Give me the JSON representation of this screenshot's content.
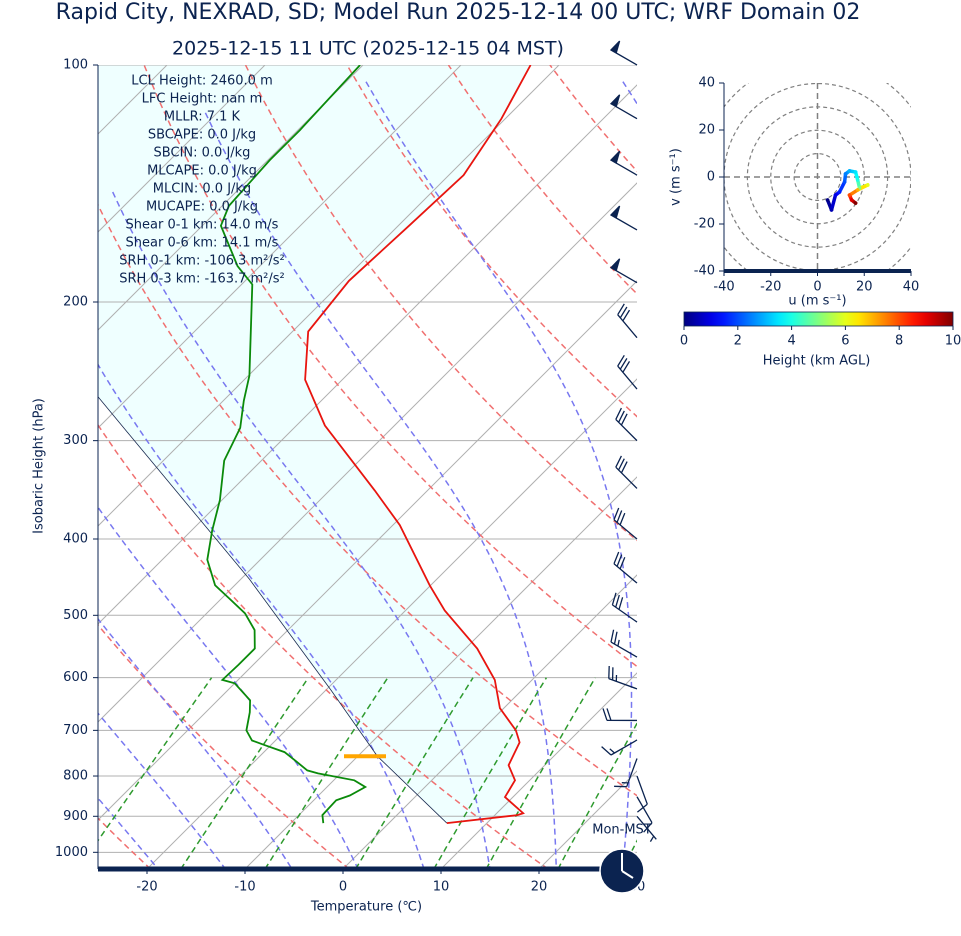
{
  "chart_data": [
    {
      "type": "skewt",
      "suptitle": "Rapid City, NEXRAD, SD; Model Run 2025-12-14 00 UTC; WRF Domain 02",
      "title": "2025-12-15 11 UTC  (2025-12-15 04 MST)",
      "x_label": "Temperature (℃)",
      "y_label": "Isobaric Height (hPa)",
      "xlim": [
        -25,
        30
      ],
      "ylim": [
        1050,
        100
      ],
      "xticks": [
        -20,
        -10,
        0,
        10,
        20,
        30
      ],
      "yticks": [
        100,
        200,
        300,
        400,
        500,
        600,
        700,
        800,
        900,
        1000
      ],
      "log_y": true,
      "grid": true,
      "temperature": {
        "color": "#e8150f",
        "pressure": [
          918,
          897,
          892,
          851,
          810,
          775,
          725,
          700,
          656,
          604,
          551,
          493,
          458,
          384,
          347,
          287,
          251,
          218,
          188,
          160,
          138,
          117,
          100
        ],
        "values": [
          5.9,
          12.3,
          12.7,
          9.2,
          8.5,
          6.3,
          5.1,
          3.5,
          -0.4,
          -3.8,
          -8.8,
          -16.0,
          -20.1,
          -29.3,
          -35.4,
          -47.1,
          -53.8,
          -58.4,
          -59.4,
          -58.9,
          -58.5,
          -60.4,
          -62.9
        ]
      },
      "dewpoint": {
        "color": "#0a8a0a",
        "pressure": [
          918,
          897,
          859,
          847,
          826,
          810,
          794,
          787,
          764,
          746,
          731,
          721,
          700,
          664,
          641,
          610,
          604,
          578,
          551,
          522,
          497,
          476,
          458,
          425,
          390,
          357,
          318,
          289,
          267,
          248,
          190,
          180,
          160,
          151,
          132,
          121,
          100
        ],
        "values": [
          -6.7,
          -7.6,
          -7.7,
          -6.8,
          -6.1,
          -7.9,
          -12.3,
          -13.7,
          -16.0,
          -17.9,
          -20.6,
          -22.4,
          -24.0,
          -25.5,
          -26.7,
          -30.0,
          -31.6,
          -31.5,
          -31.5,
          -33.4,
          -36.1,
          -39.2,
          -42.0,
          -45.4,
          -47.9,
          -50.2,
          -53.8,
          -55.5,
          -57.9,
          -59.9,
          -68.9,
          -72.3,
          -78.1,
          -79.3,
          -79.8,
          -79.8,
          -80.3
        ]
      },
      "parcel": {
        "color": "#1a2a50",
        "shade_color": "#efffff",
        "pressure": [
          918,
          755,
          622,
          450,
          263
        ],
        "values": [
          5.9,
          -8.0,
          -19.5,
          -39.1,
          -73.4
        ]
      },
      "lcl_pressure": 755,
      "lcl_color": "#ffa500",
      "parameters": [
        "LCL Height: 2460.0 m",
        "LFC Height: nan m",
        "MLLR: 7.1 K",
        "SBCAPE: 0.0 J/kg",
        "SBCIN: 0.0 J/kg",
        "MLCAPE: 0.0 J/kg",
        "MLCIN: 0.0 J/kg",
        "MUCAPE: 0.0 J/kg",
        "Shear 0-1 km: 14.0 m/s",
        "Shear 0-6 km: 14.1 m/s",
        "SRH 0-1 km: -106.3 m²/s²",
        "SRH 0-3 km: -163.7 m²/s²"
      ],
      "wind": {
        "color": "#0b2350",
        "pressure": [
          100,
          117,
          138,
          162,
          189,
          222,
          258,
          300,
          345,
          400,
          455,
          510,
          565,
          620,
          680,
          720,
          760,
          800,
          850,
          900
        ],
        "speed": [
          50,
          50,
          50,
          50,
          50,
          30,
          30,
          30,
          30,
          30,
          30,
          30,
          25,
          25,
          20,
          15,
          15,
          10,
          10,
          5
        ],
        "direction": [
          300,
          300,
          300,
          300,
          300,
          320,
          320,
          315,
          315,
          310,
          310,
          305,
          300,
          290,
          270,
          240,
          200,
          160,
          150,
          140
        ]
      },
      "timezone_label": "Mon-MST"
    },
    {
      "type": "hodograph",
      "x_label": "u (m s⁻¹)",
      "y_label": "v (m s⁻¹)",
      "xlim": [
        -40,
        40
      ],
      "ylim": [
        -40,
        40
      ],
      "xticks": [
        -40,
        -20,
        0,
        20,
        40
      ],
      "yticks": [
        -40,
        -20,
        0,
        20,
        40
      ],
      "u": [
        4.3,
        6.0,
        7.7,
        9.4,
        11.6,
        12.0,
        13.7,
        16.3,
        17.2,
        18.0,
        21.5,
        17.2,
        13.7,
        14.6,
        16.3
      ],
      "v": [
        -9.8,
        -14.0,
        -7.7,
        -6.4,
        -2.1,
        1.3,
        2.6,
        2.1,
        -1.3,
        -4.7,
        -3.4,
        -5.5,
        -7.7,
        -9.8,
        -11.1
      ],
      "height": [
        0,
        0.5,
        1,
        1.5,
        2,
        2.5,
        3,
        3.5,
        4,
        5,
        6,
        7,
        8,
        9,
        10
      ]
    },
    {
      "type": "colorbar",
      "label": "Height (km AGL)",
      "colormap": "jet",
      "lim": [
        0,
        10
      ],
      "ticks": [
        0,
        2,
        4,
        6,
        8,
        10
      ]
    }
  ]
}
